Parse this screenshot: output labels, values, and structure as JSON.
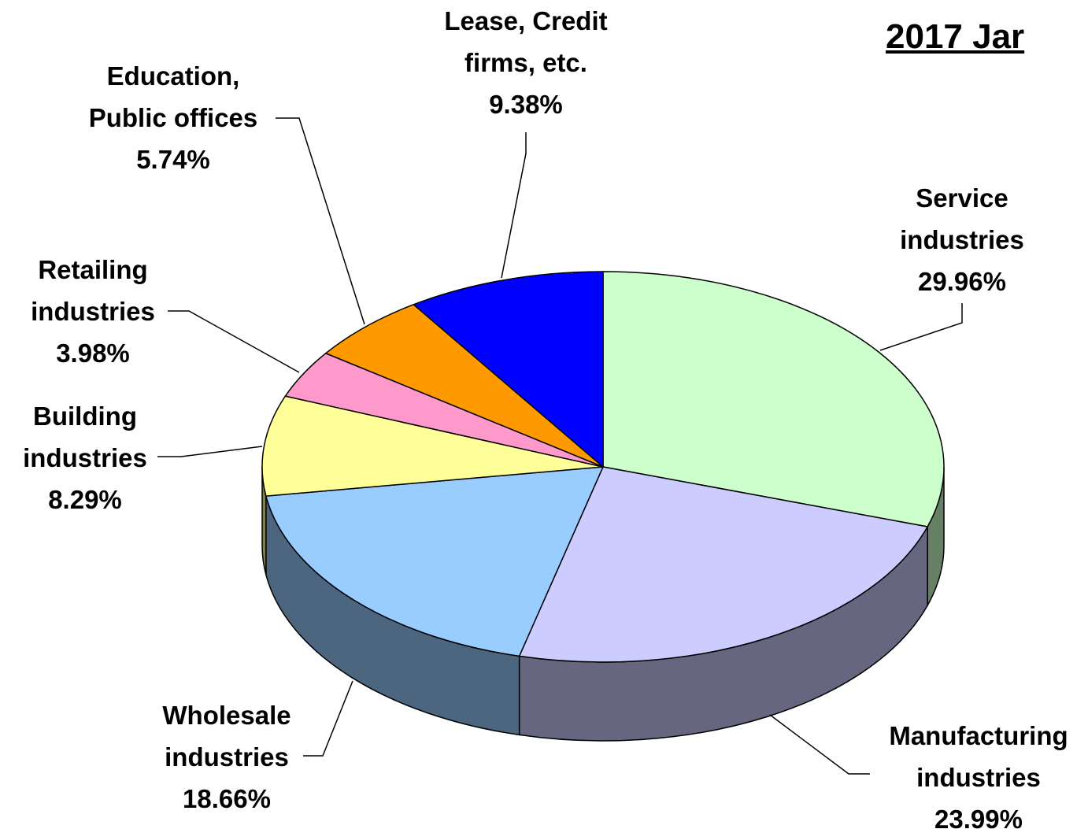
{
  "chart_data": {
    "type": "pie3d",
    "title": "2017 Jar",
    "categories": [
      "Service industries",
      "Manufacturing industries",
      "Wholesale industries",
      "Building industries",
      "Retailing industries",
      "Education, Public offices",
      "Lease, Credit firms, etc."
    ],
    "values": [
      29.96,
      23.99,
      18.66,
      8.29,
      3.98,
      5.74,
      9.38
    ],
    "value_labels": [
      "29.96%",
      "23.99%",
      "18.66%",
      "8.29%",
      "3.98%",
      "5.74%",
      "9.38%"
    ],
    "colors": [
      "#ccffcc",
      "#ccccff",
      "#99ccff",
      "#ffff99",
      "#ff99cc",
      "#ff9900",
      "#0000ff"
    ]
  }
}
